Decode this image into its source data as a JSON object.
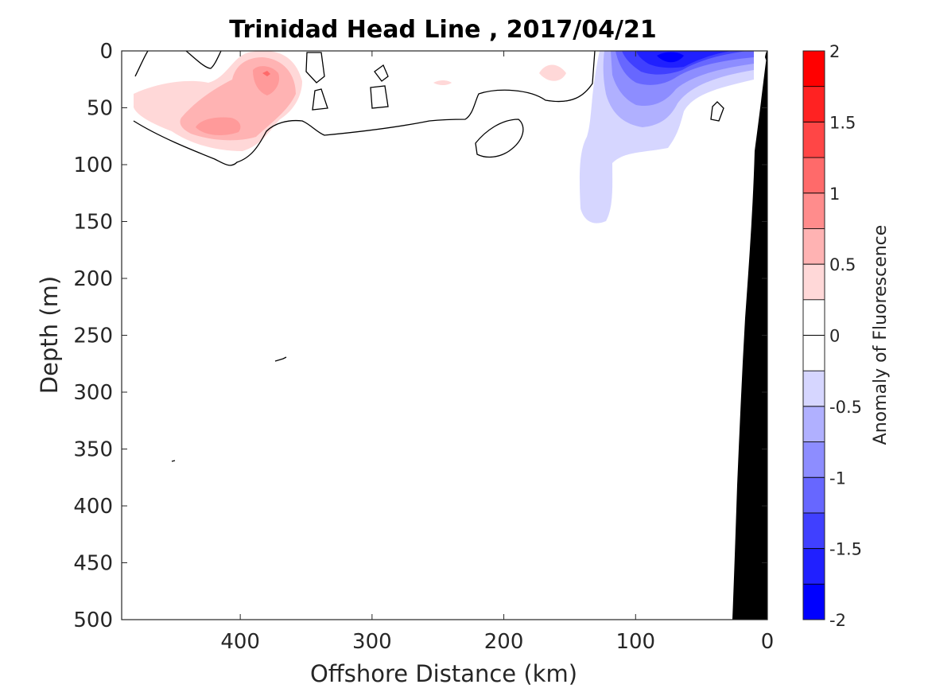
{
  "chart_data": {
    "type": "heatmap",
    "title": "Trinidad Head Line , 2017/04/21",
    "xlabel": "Offshore Distance (km)",
    "ylabel": "Depth (m)",
    "xlim": [
      490,
      0
    ],
    "ylim": [
      0,
      500
    ],
    "x_reversed": true,
    "y_reversed": true,
    "x_ticks": [
      400,
      300,
      200,
      100,
      0
    ],
    "y_ticks": [
      0,
      50,
      100,
      150,
      200,
      250,
      300,
      350,
      400,
      450,
      500
    ],
    "colorbar": {
      "label": "Anomaly of Fluorescence",
      "range": [
        -2,
        2
      ],
      "levels": [
        -2,
        -1.75,
        -1.5,
        -1.25,
        -1,
        -0.75,
        -0.5,
        -0.25,
        0,
        0.25,
        0.5,
        0.75,
        1,
        1.25,
        1.5,
        1.75,
        2
      ],
      "ticks": [
        2,
        1.5,
        1,
        0.5,
        0,
        -0.5,
        -1,
        -1.5,
        -2
      ],
      "tick_labels": [
        "2",
        "1.5",
        "1",
        "0.5",
        "0",
        "-0.5",
        "-1",
        "-1.5",
        "-2"
      ],
      "colors_low_to_high": [
        "#0000ff",
        "#2020ff",
        "#4040ff",
        "#6767ff",
        "#8d8dff",
        "#b0b0ff",
        "#d6d6ff",
        "#ffffff",
        "#ffffff",
        "#ffd8d8",
        "#ffb3b3",
        "#ff8c8c",
        "#ff6a6a",
        "#ff4646",
        "#ff2222",
        "#ff0000"
      ]
    },
    "features": [
      {
        "name": "positive anomaly, upper water column",
        "value": 0.5,
        "x_range": [
          490,
          320
        ],
        "depth_range": [
          0,
          85
        ]
      },
      {
        "name": "positive anomaly core",
        "value": 1.0,
        "x_range": [
          420,
          370
        ],
        "depth_range": [
          10,
          80
        ]
      },
      {
        "name": "negative anomaly near shore",
        "value": -1.75,
        "x_range": [
          145,
          10
        ],
        "depth_range": [
          0,
          150
        ]
      },
      {
        "name": "bottom topography (shelf and slope)",
        "value": null,
        "x_range": [
          28,
          0
        ],
        "depth_range": [
          5,
          500
        ]
      }
    ]
  }
}
